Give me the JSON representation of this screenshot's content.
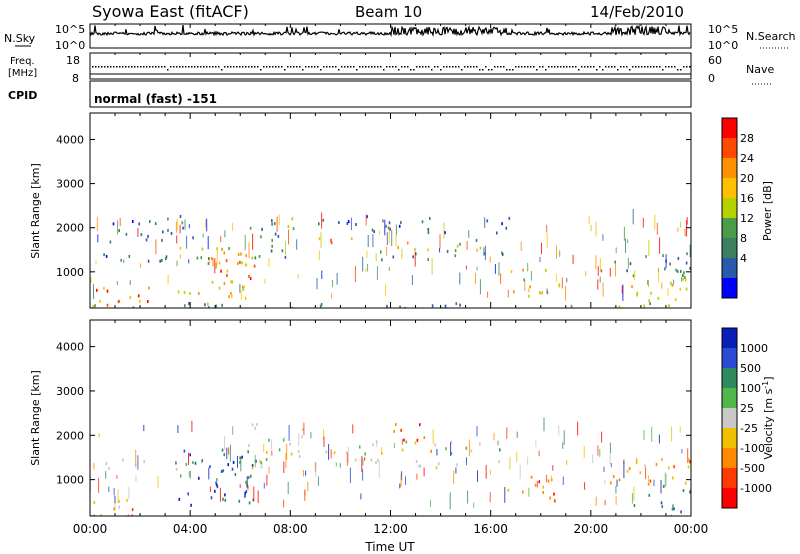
{
  "header": {
    "station": "Syowa East (fitACF)",
    "beam": "Beam 10",
    "date": "14/Feb/2010"
  },
  "panels": {
    "nsky": {
      "left_label": "N.Sky",
      "right_label": "N.Search",
      "left_ticks": [
        "10^5",
        "10^0"
      ],
      "right_ticks": [
        "10^5",
        "10^0"
      ]
    },
    "freq": {
      "left_label_1": "Freq.",
      "left_label_2": "[MHz]",
      "right_label": "Nave",
      "left_ticks": [
        "18",
        "8"
      ],
      "right_ticks": [
        "60",
        "0"
      ]
    },
    "cpid": {
      "label": "CPID",
      "mode_text": "normal (fast) -151"
    }
  },
  "chart_data": [
    {
      "type": "heatmap",
      "name": "power",
      "xlabel": "",
      "ylabel": "Slant Range [km]",
      "xlim_hours": [
        0,
        24
      ],
      "ylim": [
        180,
        4600
      ],
      "x_tick_labels": [
        "00:00",
        "04:00",
        "08:00",
        "12:00",
        "16:00",
        "20:00",
        "00:00"
      ],
      "y_ticks": [
        1000,
        2000,
        3000,
        4000
      ],
      "colorbar": {
        "label": "Power [dB]",
        "tick_labels": [
          "28",
          "24",
          "20",
          "16",
          "12",
          "8",
          "4"
        ],
        "colors": [
          "#ff0000",
          "#ff4a00",
          "#ff9000",
          "#ffc000",
          "#b5d200",
          "#4a9c4a",
          "#3c8060",
          "#2a5aaa",
          "#0000ff"
        ]
      },
      "regions": [
        {
          "x": [
            0.0,
            2.5
          ],
          "y": [
            190,
            700
          ],
          "level": 0.75
        },
        {
          "x": [
            0.0,
            1.2
          ],
          "y": [
            190,
            380
          ],
          "level": 0.85
        },
        {
          "x": [
            0.0,
            5.0
          ],
          "y": [
            1250,
            1500
          ],
          "level": 0.25
        },
        {
          "x": [
            0.6,
            4.5
          ],
          "y": [
            1700,
            2300
          ],
          "level": 0.25
        },
        {
          "x": [
            3.5,
            6.4
          ],
          "y": [
            400,
            1700
          ],
          "level": 0.55
        },
        {
          "x": [
            5.2,
            6.6
          ],
          "y": [
            500,
            1600
          ],
          "level": 0.8
        },
        {
          "x": [
            6.3,
            8.6
          ],
          "y": [
            1300,
            2300
          ],
          "level": 0.35
        },
        {
          "x": [
            8.8,
            11.2
          ],
          "y": [
            1600,
            1800
          ],
          "level": 0.7
        },
        {
          "x": [
            11.2,
            13.8
          ],
          "y": [
            1500,
            1700
          ],
          "level": 0.6
        },
        {
          "x": [
            9.0,
            16.8
          ],
          "y": [
            1900,
            2300
          ],
          "level": 0.2
        },
        {
          "x": [
            9.8,
            16.7
          ],
          "y": [
            1300,
            1500
          ],
          "level": 0.3
        },
        {
          "x": [
            14.4,
            16.8
          ],
          "y": [
            1500,
            1800
          ],
          "level": 0.5
        },
        {
          "x": [
            16.6,
            18.8
          ],
          "y": [
            450,
            1100
          ],
          "level": 0.55
        },
        {
          "x": [
            21.6,
            24.0
          ],
          "y": [
            190,
            900
          ],
          "level": 0.6
        },
        {
          "x": [
            20.0,
            24.0
          ],
          "y": [
            900,
            1500
          ],
          "level": 0.25
        },
        {
          "x": [
            0.0,
            24.0
          ],
          "y": [
            190,
            320
          ],
          "level": 0.3
        }
      ]
    },
    {
      "type": "heatmap",
      "name": "velocity",
      "xlabel": "Time UT",
      "ylabel": "Slant Range [km]",
      "xlim_hours": [
        0,
        24
      ],
      "ylim": [
        180,
        4600
      ],
      "x_tick_labels": [
        "00:00",
        "04:00",
        "08:00",
        "12:00",
        "16:00",
        "20:00",
        "00:00"
      ],
      "y_ticks": [
        1000,
        2000,
        3000,
        4000
      ],
      "colorbar": {
        "label": "Velocity [m s^-1]",
        "tick_labels": [
          "1000",
          "500",
          "100",
          "25",
          "-25",
          "-100",
          "-500",
          "-1000"
        ],
        "colors": [
          "#0a1fb8",
          "#2a4ad4",
          "#2f8a60",
          "#4fb848",
          "#c8c8c8",
          "#f0c000",
          "#ff8a00",
          "#ff3a00",
          "#ff0000"
        ]
      },
      "regions": [
        {
          "x": [
            0.0,
            2.5
          ],
          "y": [
            190,
            700
          ],
          "level": 0.3
        },
        {
          "x": [
            0.0,
            1.0
          ],
          "y": [
            190,
            320
          ],
          "level": 0.7
        },
        {
          "x": [
            0.0,
            5.0
          ],
          "y": [
            1250,
            1500
          ],
          "level": 0.55
        },
        {
          "x": [
            3.5,
            6.4
          ],
          "y": [
            400,
            1700
          ],
          "level": 0.8
        },
        {
          "x": [
            5.2,
            6.6
          ],
          "y": [
            500,
            1600
          ],
          "level": 0.85
        },
        {
          "x": [
            6.3,
            8.6
          ],
          "y": [
            1300,
            2300
          ],
          "level": 0.5
        },
        {
          "x": [
            8.8,
            16.8
          ],
          "y": [
            1600,
            1900
          ],
          "level": 0.5
        },
        {
          "x": [
            12.0,
            14.0
          ],
          "y": [
            1900,
            2300
          ],
          "level": 0.2
        },
        {
          "x": [
            9.8,
            16.7
          ],
          "y": [
            1300,
            1500
          ],
          "level": 0.5
        },
        {
          "x": [
            16.6,
            18.8
          ],
          "y": [
            450,
            1100
          ],
          "level": 0.25
        },
        {
          "x": [
            21.6,
            24.0
          ],
          "y": [
            190,
            900
          ],
          "level": 0.8
        },
        {
          "x": [
            20.0,
            24.0
          ],
          "y": [
            900,
            1500
          ],
          "level": 0.3
        }
      ]
    }
  ]
}
